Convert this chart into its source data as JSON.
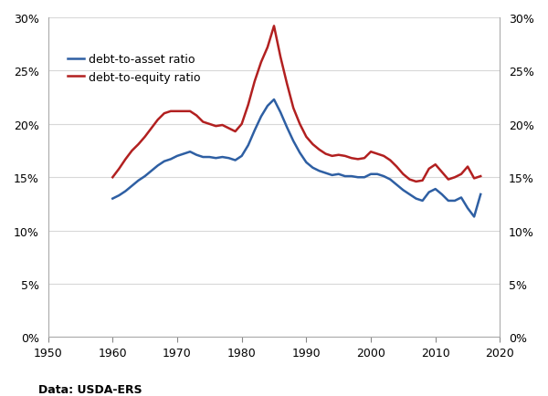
{
  "source_text": "Data: USDA-ERS",
  "xlim": [
    1950,
    2020
  ],
  "ylim": [
    0,
    0.3
  ],
  "yticks": [
    0,
    0.05,
    0.1,
    0.15,
    0.2,
    0.25,
    0.3
  ],
  "xticks": [
    1950,
    1960,
    1970,
    1980,
    1990,
    2000,
    2010,
    2020
  ],
  "background_color": "#ffffff",
  "plot_bg_color": "#ffffff",
  "grid_color": "#d8d8d8",
  "blue_color": "#2e5fa3",
  "red_color": "#b22020",
  "legend_labels": [
    "debt-to-asset ratio",
    "debt-to-equity ratio"
  ],
  "debt_to_asset": {
    "years": [
      1960,
      1961,
      1962,
      1963,
      1964,
      1965,
      1966,
      1967,
      1968,
      1969,
      1970,
      1971,
      1972,
      1973,
      1974,
      1975,
      1976,
      1977,
      1978,
      1979,
      1980,
      1981,
      1982,
      1983,
      1984,
      1985,
      1986,
      1987,
      1988,
      1989,
      1990,
      1991,
      1992,
      1993,
      1994,
      1995,
      1996,
      1997,
      1998,
      1999,
      2000,
      2001,
      2002,
      2003,
      2004,
      2005,
      2006,
      2007,
      2008,
      2009,
      2010,
      2011,
      2012,
      2013,
      2014,
      2015,
      2016,
      2017
    ],
    "values": [
      0.13,
      0.133,
      0.137,
      0.142,
      0.147,
      0.151,
      0.156,
      0.161,
      0.165,
      0.167,
      0.17,
      0.172,
      0.174,
      0.171,
      0.169,
      0.169,
      0.168,
      0.169,
      0.168,
      0.166,
      0.17,
      0.18,
      0.194,
      0.207,
      0.217,
      0.223,
      0.211,
      0.197,
      0.184,
      0.173,
      0.164,
      0.159,
      0.156,
      0.154,
      0.152,
      0.153,
      0.151,
      0.151,
      0.15,
      0.15,
      0.153,
      0.153,
      0.151,
      0.148,
      0.143,
      0.138,
      0.134,
      0.13,
      0.128,
      0.136,
      0.139,
      0.134,
      0.128,
      0.128,
      0.131,
      0.121,
      0.113,
      0.134
    ]
  },
  "debt_to_equity": {
    "years": [
      1960,
      1961,
      1962,
      1963,
      1964,
      1965,
      1966,
      1967,
      1968,
      1969,
      1970,
      1971,
      1972,
      1973,
      1974,
      1975,
      1976,
      1977,
      1978,
      1979,
      1980,
      1981,
      1982,
      1983,
      1984,
      1985,
      1986,
      1987,
      1988,
      1989,
      1990,
      1991,
      1992,
      1993,
      1994,
      1995,
      1996,
      1997,
      1998,
      1999,
      2000,
      2001,
      2002,
      2003,
      2004,
      2005,
      2006,
      2007,
      2008,
      2009,
      2010,
      2011,
      2012,
      2013,
      2014,
      2015,
      2016,
      2017
    ],
    "values": [
      0.15,
      0.158,
      0.167,
      0.175,
      0.181,
      0.188,
      0.196,
      0.204,
      0.21,
      0.212,
      0.212,
      0.212,
      0.212,
      0.208,
      0.202,
      0.2,
      0.198,
      0.199,
      0.196,
      0.193,
      0.2,
      0.218,
      0.24,
      0.258,
      0.272,
      0.292,
      0.263,
      0.238,
      0.215,
      0.2,
      0.188,
      0.181,
      0.176,
      0.172,
      0.17,
      0.171,
      0.17,
      0.168,
      0.167,
      0.168,
      0.174,
      0.172,
      0.17,
      0.166,
      0.16,
      0.153,
      0.148,
      0.146,
      0.147,
      0.158,
      0.162,
      0.155,
      0.148,
      0.15,
      0.153,
      0.16,
      0.149,
      0.151
    ]
  }
}
